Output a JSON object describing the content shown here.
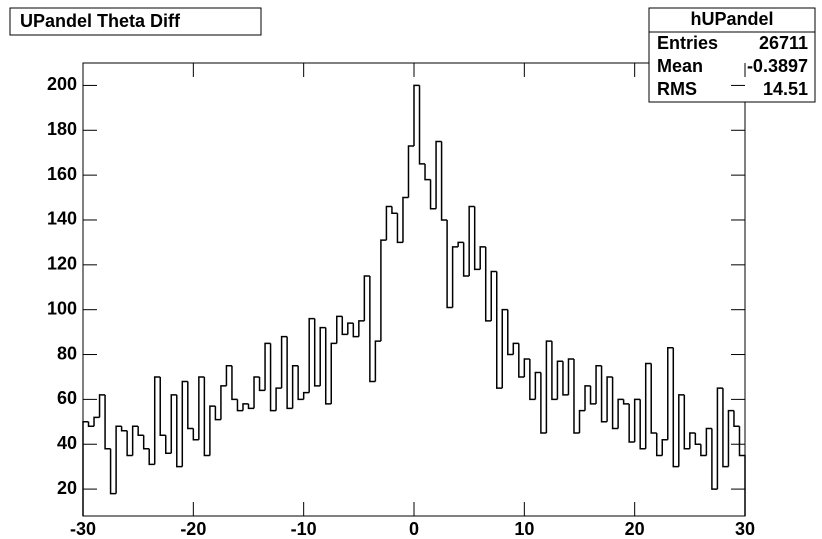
{
  "chart_data": {
    "type": "histogram",
    "title": "UPandel Theta Diff",
    "bins": [
      -30,
      -29.5,
      -29,
      -28.5,
      -28,
      -27.5,
      -27,
      -26.5,
      -26,
      -25.5,
      -25,
      -24.5,
      -24,
      -23.5,
      -23,
      -22.5,
      -22,
      -21.5,
      -21,
      -20.5,
      -20,
      -19.5,
      -19,
      -18.5,
      -18,
      -17.5,
      -17,
      -16.5,
      -16,
      -15.5,
      -15,
      -14.5,
      -14,
      -13.5,
      -13,
      -12.5,
      -12,
      -11.5,
      -11,
      -10.5,
      -10,
      -9.5,
      -9,
      -8.5,
      -8,
      -7.5,
      -7,
      -6.5,
      -6,
      -5.5,
      -5,
      -4.5,
      -4,
      -3.5,
      -3,
      -2.5,
      -2,
      -1.5,
      -1,
      -0.5,
      0,
      0.5,
      1,
      1.5,
      2,
      2.5,
      3,
      3.5,
      4,
      4.5,
      5,
      5.5,
      6,
      6.5,
      7,
      7.5,
      8,
      8.5,
      9,
      9.5,
      10,
      10.5,
      11,
      11.5,
      12,
      12.5,
      13,
      13.5,
      14,
      14.5,
      15,
      15.5,
      16,
      16.5,
      17,
      17.5,
      18,
      18.5,
      19,
      19.5,
      20,
      20.5,
      21,
      21.5,
      22,
      22.5,
      23,
      23.5,
      24,
      24.5,
      25,
      25.5,
      26,
      26.5,
      27,
      27.5,
      28,
      28.5,
      29,
      29.5,
      30
    ],
    "values": [
      50,
      48,
      52,
      62,
      38,
      18,
      48,
      46,
      35,
      48,
      44,
      38,
      31,
      70,
      44,
      36,
      62,
      30,
      68,
      47,
      42,
      70,
      35,
      57,
      51,
      66,
      75,
      60,
      55,
      58,
      56,
      70,
      64,
      85,
      55,
      65,
      88,
      56,
      75,
      60,
      63,
      96,
      66,
      92,
      58,
      85,
      97,
      89,
      94,
      88,
      95,
      115,
      68,
      86,
      131,
      146,
      143,
      130,
      150,
      173,
      200,
      165,
      158,
      145,
      175,
      140,
      101,
      128,
      130,
      115,
      146,
      118,
      128,
      95,
      117,
      65,
      100,
      80,
      85,
      70,
      78,
      60,
      72,
      45,
      86,
      60,
      77,
      62,
      78,
      45,
      55,
      66,
      58,
      75,
      50,
      70,
      47,
      60,
      58,
      41,
      60,
      38,
      76,
      45,
      35,
      42,
      83,
      30,
      62,
      38,
      45,
      40,
      35,
      47,
      20,
      65,
      30,
      55,
      48,
      35
    ],
    "color": "#000000",
    "xlim": [
      -30,
      30
    ],
    "xticks": [
      -30,
      -20,
      -10,
      0,
      10,
      20,
      30
    ],
    "ylim": [
      8,
      210
    ],
    "yticks": [
      20,
      40,
      60,
      80,
      100,
      120,
      140,
      160,
      180,
      200
    ],
    "stats": {
      "name": "hUPandel",
      "rows": [
        [
          "Entries",
          "26711"
        ],
        [
          "Mean",
          "-0.3897"
        ],
        [
          "RMS",
          "14.51"
        ]
      ]
    }
  }
}
